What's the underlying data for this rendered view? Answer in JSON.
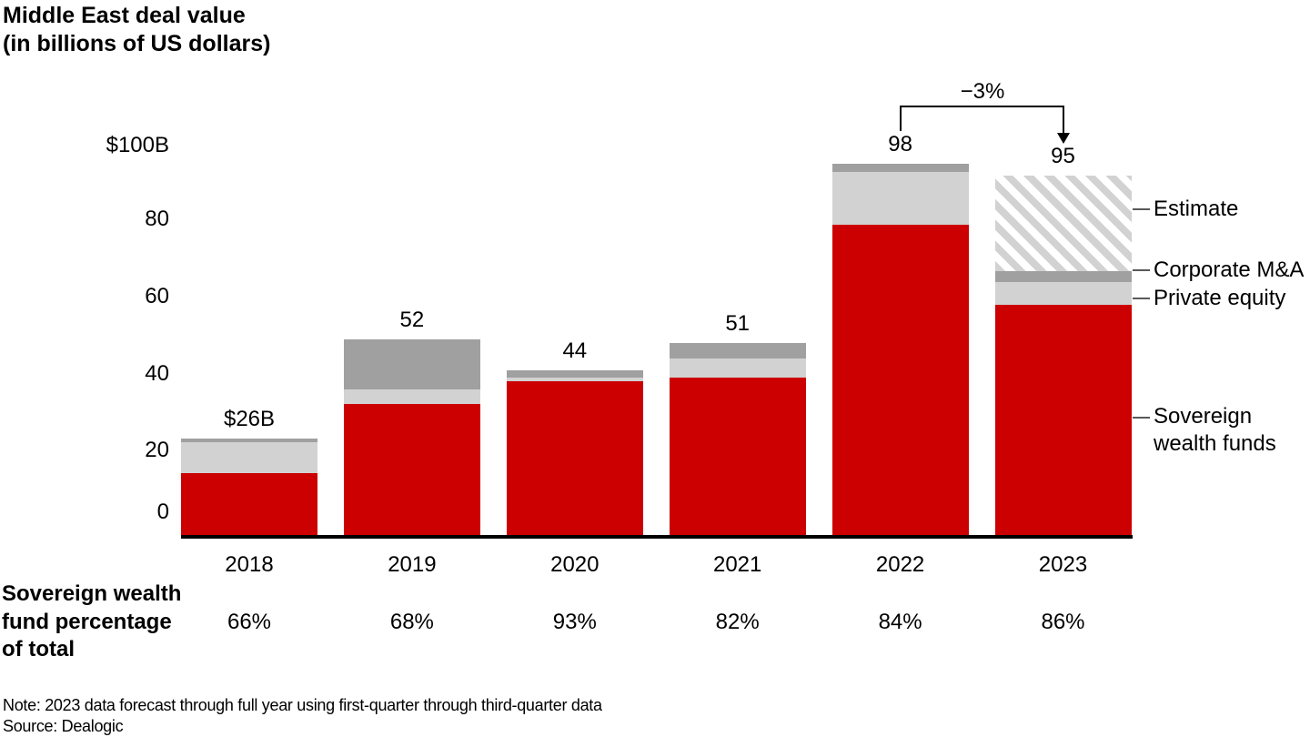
{
  "header": {
    "title_lines": [
      "Middle East deal value",
      "(in billions of US dollars)"
    ]
  },
  "chart_data": {
    "type": "bar",
    "stacked": true,
    "title": "Middle East deal value (in billions of US dollars)",
    "categories": [
      "2018",
      "2019",
      "2020",
      "2021",
      "2022",
      "2023"
    ],
    "series": [
      {
        "name": "Sovereign wealth funds",
        "color": "#cc0000",
        "values": [
          17,
          35,
          41,
          42,
          82,
          61
        ]
      },
      {
        "name": "Private equity",
        "color": "#d2d2d2",
        "values": [
          8,
          4,
          1,
          5,
          14,
          6
        ]
      },
      {
        "name": "Corporate M&A",
        "color": "#a0a0a0",
        "values": [
          1,
          13,
          2,
          4,
          2,
          3
        ]
      },
      {
        "name": "Estimate",
        "color": "#d2d2d2",
        "pattern": "diagonal-hatch",
        "values": [
          0,
          0,
          0,
          0,
          0,
          25
        ]
      }
    ],
    "totals": [
      26,
      52,
      44,
      51,
      98,
      95
    ],
    "total_labels": [
      "$26B",
      "52",
      "44",
      "51",
      "98",
      "95"
    ],
    "yticks": [
      "$100B",
      "80",
      "60",
      "40",
      "20",
      "0"
    ],
    "ylim": [
      0,
      100
    ],
    "grid": false,
    "legend_position": "right",
    "annotation": {
      "label": "−3%",
      "from": "2022",
      "to": "2023"
    }
  },
  "legend": {
    "items": [
      {
        "label": "Estimate"
      },
      {
        "label": "Corporate M&A"
      },
      {
        "label": "Private equity"
      },
      {
        "label": "Sovereign wealth funds"
      }
    ]
  },
  "bottom_table": {
    "row_label_lines": [
      "Sovereign wealth",
      "fund percentage",
      "of total"
    ],
    "values": [
      "66%",
      "68%",
      "93%",
      "82%",
      "84%",
      "86%"
    ]
  },
  "footer": {
    "note": "Note: 2023 data forecast through full year using first-quarter through third-quarter data",
    "source": "Source: Dealogic"
  }
}
